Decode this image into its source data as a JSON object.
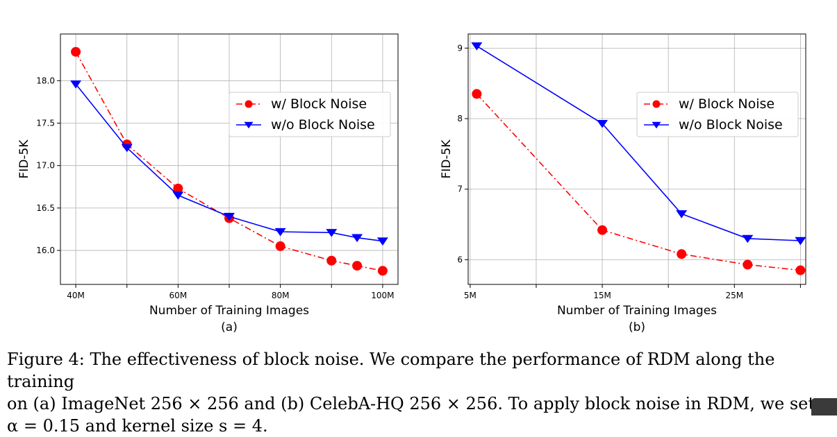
{
  "chart_data": [
    {
      "type": "line",
      "sublabel": "(a)",
      "xlabel": "Number of Training Images",
      "ylabel": "FID-5K",
      "xlim": [
        37,
        103
      ],
      "ylim": [
        15.6,
        18.55
      ],
      "grid": true,
      "legend_position": "upper-right",
      "xtick_labels": [
        {
          "x": 40,
          "label": "40M"
        },
        {
          "x": 60,
          "label": "60M"
        },
        {
          "x": 80,
          "label": "80M"
        },
        {
          "x": 100,
          "label": "100M"
        }
      ],
      "x_grid": [
        40,
        50,
        60,
        70,
        80,
        90,
        100
      ],
      "ytick_labels": [
        {
          "y": 16.0,
          "label": "16.0"
        },
        {
          "y": 16.5,
          "label": "16.5"
        },
        {
          "y": 17.0,
          "label": "17.0"
        },
        {
          "y": 17.5,
          "label": "17.5"
        },
        {
          "y": 18.0,
          "label": "18.0"
        }
      ],
      "series": [
        {
          "name": "w/ Block Noise",
          "color": "#ff0000",
          "line_style": "dashdot",
          "marker": "circle",
          "x": [
            40,
            50,
            60,
            70,
            80,
            90,
            95,
            100
          ],
          "y": [
            18.34,
            17.25,
            16.73,
            16.38,
            16.05,
            15.88,
            15.82,
            15.76
          ]
        },
        {
          "name": "w/o Block Noise",
          "color": "#0000ff",
          "line_style": "solid",
          "marker": "triangle-down",
          "x": [
            40,
            50,
            60,
            70,
            80,
            90,
            95,
            100
          ],
          "y": [
            17.96,
            17.21,
            16.65,
            16.4,
            16.22,
            16.21,
            16.15,
            16.11
          ]
        }
      ]
    },
    {
      "type": "line",
      "sublabel": "(b)",
      "xlabel": "Number of Training Images",
      "ylabel": "FID-5K",
      "xlim": [
        4.85,
        30.4
      ],
      "ylim": [
        5.65,
        9.2
      ],
      "grid": true,
      "legend_position": "upper-right",
      "xtick_labels": [
        {
          "x": 5,
          "label": "5M"
        },
        {
          "x": 15,
          "label": "15M"
        },
        {
          "x": 25,
          "label": "25M"
        }
      ],
      "x_grid": [
        5,
        10,
        15,
        20,
        25,
        30
      ],
      "ytick_labels": [
        {
          "y": 6,
          "label": "6"
        },
        {
          "y": 7,
          "label": "7"
        },
        {
          "y": 8,
          "label": "8"
        },
        {
          "y": 9,
          "label": "9"
        }
      ],
      "series": [
        {
          "name": "w/ Block Noise",
          "color": "#ff0000",
          "line_style": "dashdot",
          "marker": "circle",
          "x": [
            5.5,
            15,
            21,
            26,
            30
          ],
          "y": [
            8.35,
            6.42,
            6.08,
            5.93,
            5.85
          ]
        },
        {
          "name": "w/o Block Noise",
          "color": "#0000ff",
          "line_style": "solid",
          "marker": "triangle-down",
          "x": [
            5.5,
            15,
            21,
            26,
            30
          ],
          "y": [
            9.03,
            7.93,
            6.65,
            6.3,
            6.27
          ]
        }
      ]
    }
  ],
  "caption": {
    "line1": "Figure 4: The effectiveness of block noise. We compare the performance of RDM along the training",
    "line2": "on (a) ImageNet 256 × 256 and (b) CelebA-HQ 256 × 256. To apply block noise in RDM, we set",
    "line3": "α = 0.15 and kernel size s = 4."
  }
}
